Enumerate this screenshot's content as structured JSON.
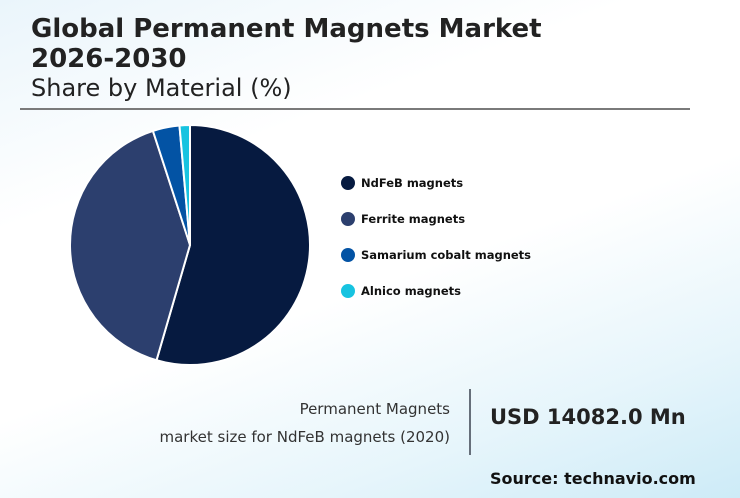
{
  "header": {
    "title": "Global Permanent Magnets Market 2026-2030",
    "subtitle": "Share by Material (%)"
  },
  "chart_data": {
    "type": "pie",
    "title": "Global Permanent Magnets Market 2026-2030",
    "subtitle": "Share by Material (%)",
    "categories": [
      "NdFeB magnets",
      "Ferrite magnets",
      "Samarium cobalt magnets",
      "Alnico magnets"
    ],
    "values": [
      54.5,
      40.5,
      3.6,
      1.4
    ],
    "colors": [
      "#061a40",
      "#2c3f6e",
      "#0353a4",
      "#17c3e0"
    ],
    "start_angle": "12 o'clock, clockwise",
    "legend_position": "right"
  },
  "legend": {
    "items": [
      {
        "label": "NdFeB magnets",
        "color": "#061a40"
      },
      {
        "label": "Ferrite magnets",
        "color": "#2c3f6e"
      },
      {
        "label": "Samarium cobalt magnets",
        "color": "#0353a4"
      },
      {
        "label": "Alnico magnets",
        "color": "#17c3e0"
      }
    ]
  },
  "stat": {
    "label_line1": "Permanent Magnets",
    "label_line2": "market size for NdFeB magnets (2020)",
    "value": "USD 14082.0 Mn"
  },
  "footer": {
    "source": "Source: technavio.com"
  }
}
